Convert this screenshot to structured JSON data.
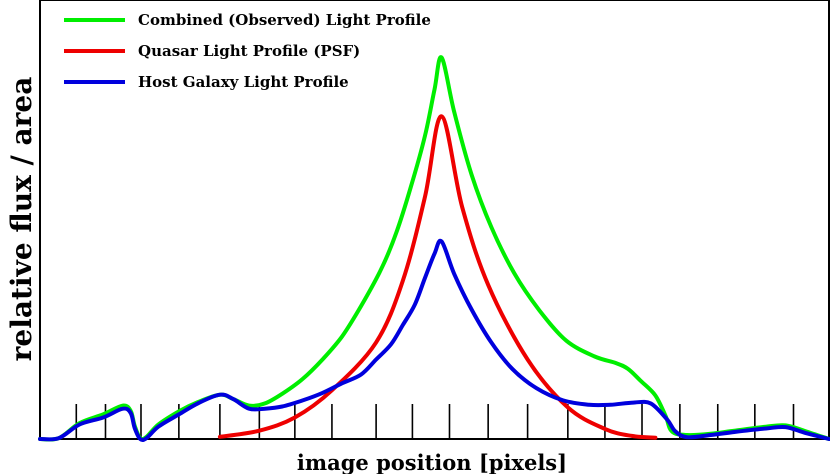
{
  "chart_data": {
    "type": "line",
    "title": "",
    "xlabel": "image position [pixels]",
    "ylabel": "relative flux / area",
    "xlim": [
      0,
      100
    ],
    "ylim": [
      0,
      100
    ],
    "grid": false,
    "legend_position": "top-left",
    "x_ticks_minor": [
      4.6,
      8.3,
      12.8,
      17.6,
      22.8,
      27.8,
      32.3,
      37.0,
      42.6,
      47.2,
      51.9,
      56.8,
      61.8,
      66.9,
      71.6,
      76.3,
      81.1,
      85.9,
      90.6,
      95.5
    ],
    "series": [
      {
        "name": "Combined (Observed) Light Profile",
        "color": "#00ee00",
        "x": [
          0,
          2.4,
          5.0,
          8.0,
          10.5,
          11.5,
          12.0,
          12.7,
          13.5,
          15.0,
          17.6,
          20.0,
          22.8,
          24.5,
          26.5,
          28.5,
          30.7,
          33.3,
          35.8,
          38.3,
          40.7,
          43.3,
          45.2,
          47.0,
          48.8,
          50.0,
          50.9,
          52.5,
          54.7,
          57.2,
          60.1,
          63.3,
          66.7,
          70.3,
          73.0,
          74.5,
          76.1,
          78.0,
          79.3,
          80.1,
          82.0,
          85.0,
          88.0,
          92.0,
          94.5,
          97.0,
          100
        ],
        "y": [
          0,
          0.2,
          3.6,
          5.6,
          7.6,
          6.4,
          3.0,
          0.2,
          0.5,
          3.3,
          6.3,
          8.4,
          10.1,
          9.1,
          7.6,
          8.1,
          10.3,
          13.7,
          18.1,
          23.4,
          30.3,
          38.9,
          47.2,
          57.4,
          69.1,
          79.6,
          86.9,
          74.5,
          60.2,
          48.3,
          37.8,
          29.3,
          22.4,
          18.8,
          17.3,
          16.0,
          13.3,
          9.9,
          5.2,
          1.7,
          0.9,
          1.2,
          1.9,
          2.8,
          3.1,
          1.8,
          0
        ]
      },
      {
        "name": "Quasar Light Profile (PSF)",
        "color": "#ee0000",
        "x": [
          22.8,
          27.8,
          32.3,
          37.0,
          42.6,
          46.0,
          48.8,
          50.9,
          53.5,
          56.8,
          61.8,
          66.9,
          71.6,
          75.0,
          78.0
        ],
        "y": [
          0.5,
          1.9,
          4.9,
          11.1,
          22.0,
          36.1,
          55.2,
          73.5,
          52.9,
          35.1,
          18.1,
          7.2,
          2.3,
          0.7,
          0.3
        ]
      },
      {
        "name": "Host Galaxy Light Profile",
        "color": "#0000dd",
        "x": [
          0,
          2.4,
          5.0,
          8.0,
          10.5,
          11.5,
          12.0,
          12.7,
          13.5,
          15.0,
          17.6,
          20.0,
          22.8,
          24.5,
          26.5,
          28.5,
          30.7,
          33.3,
          35.8,
          38.3,
          40.7,
          42.6,
          44.5,
          46.0,
          47.5,
          48.8,
          50.0,
          50.9,
          52.5,
          54.7,
          57.2,
          59.9,
          62.9,
          66.3,
          69.6,
          72.3,
          75.2,
          77.4,
          79.5,
          80.5,
          82.0,
          85.0,
          88.0,
          92.0,
          94.5,
          97.0,
          100
        ],
        "y": [
          0,
          0.2,
          3.3,
          4.9,
          6.9,
          5.9,
          2.5,
          0,
          0.2,
          2.8,
          5.6,
          8.1,
          10.1,
          9.1,
          6.9,
          6.9,
          7.4,
          8.8,
          10.5,
          12.7,
          14.7,
          18.1,
          21.6,
          26.0,
          30.6,
          36.7,
          42.2,
          45.0,
          37.6,
          29.5,
          22.0,
          15.9,
          11.6,
          8.8,
          7.8,
          7.8,
          8.3,
          8.1,
          4.4,
          1.8,
          0.4,
          0.9,
          1.6,
          2.4,
          2.7,
          1.4,
          0
        ]
      }
    ]
  }
}
